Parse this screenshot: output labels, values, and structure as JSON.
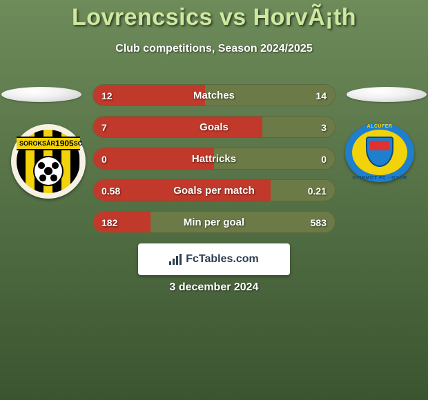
{
  "colors": {
    "bg_top": "#6e8b5a",
    "bg_bottom": "#3a5530",
    "title": "#cfe8a0",
    "stat_left_fill": "#c0392b",
    "stat_right_fill": "#6c7a47",
    "row_track": "#6c7a47",
    "text_white": "#ffffff"
  },
  "title": "Lovrencsics vs HorvÃ¡th",
  "subtitle": "Club competitions, Season 2024/2025",
  "date": "3 december 2024",
  "brand": "FcTables.com",
  "crest_left": {
    "top_word_left": "SOROKSÁR",
    "top_word_right": "SC",
    "year": "1905"
  },
  "crest_right": {
    "top": "ALCUFER",
    "bottom": "GYIRMÓT FC · GYŐR"
  },
  "rows": [
    {
      "label": "Matches",
      "left": "12",
      "right": "14",
      "left_pct": 46.2
    },
    {
      "label": "Goals",
      "left": "7",
      "right": "3",
      "left_pct": 70.0
    },
    {
      "label": "Hattricks",
      "left": "0",
      "right": "0",
      "left_pct": 50.0
    },
    {
      "label": "Goals per match",
      "left": "0.58",
      "right": "0.21",
      "left_pct": 73.4
    },
    {
      "label": "Min per goal",
      "left": "182",
      "right": "583",
      "left_pct": 23.8
    }
  ],
  "row_style": {
    "label_fontsize": 15,
    "value_fontsize": 14,
    "height": 32,
    "gap": 14,
    "radius": 16
  }
}
